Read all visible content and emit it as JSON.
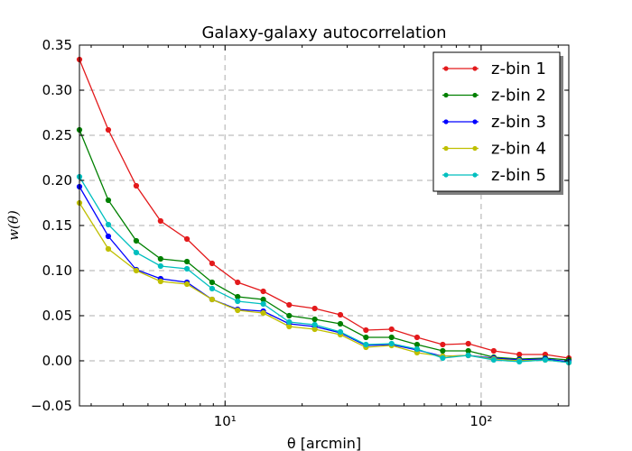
{
  "chart_data": {
    "type": "line",
    "title": "Galaxy-galaxy autocorrelation",
    "xlabel": "θ [arcmin]",
    "ylabel": "w(θ)",
    "xscale": "log",
    "xlim": [
      2.7,
      220
    ],
    "ylim": [
      -0.05,
      0.35
    ],
    "x_ticks": [
      {
        "value": 10,
        "label": "10¹"
      },
      {
        "value": 100,
        "label": "10²"
      }
    ],
    "y_ticks": [
      {
        "value": -0.05,
        "label": "−0.05"
      },
      {
        "value": 0.0,
        "label": "0.00"
      },
      {
        "value": 0.05,
        "label": "0.05"
      },
      {
        "value": 0.1,
        "label": "0.10"
      },
      {
        "value": 0.15,
        "label": "0.15"
      },
      {
        "value": 0.2,
        "label": "0.20"
      },
      {
        "value": 0.25,
        "label": "0.25"
      },
      {
        "value": 0.3,
        "label": "0.30"
      },
      {
        "value": 0.35,
        "label": "0.35"
      }
    ],
    "grid": true,
    "legend_position": "top-right",
    "x": [
      2.7,
      3.5,
      4.5,
      5.6,
      7.1,
      8.9,
      11.2,
      14.1,
      17.8,
      22.4,
      28.2,
      35.5,
      44.7,
      56.2,
      70.8,
      89.1,
      112,
      141,
      178,
      220
    ],
    "series": [
      {
        "name": "z-bin 1",
        "color": "#e31a1c",
        "values": [
          0.334,
          0.256,
          0.194,
          0.155,
          0.135,
          0.108,
          0.087,
          0.077,
          0.062,
          0.058,
          0.051,
          0.034,
          0.035,
          0.026,
          0.018,
          0.019,
          0.011,
          0.007,
          0.007,
          0.003
        ]
      },
      {
        "name": "z-bin 2",
        "color": "#008000",
        "values": [
          0.256,
          0.178,
          0.133,
          0.113,
          0.11,
          0.087,
          0.071,
          0.068,
          0.05,
          0.046,
          0.041,
          0.026,
          0.026,
          0.018,
          0.011,
          0.011,
          0.004,
          0.002,
          0.003,
          0.001
        ]
      },
      {
        "name": "z-bin 3",
        "color": "#0000ff",
        "values": [
          0.193,
          0.138,
          0.101,
          0.091,
          0.087,
          0.068,
          0.057,
          0.055,
          0.041,
          0.038,
          0.031,
          0.017,
          0.018,
          0.012,
          0.005,
          0.006,
          0.003,
          0.001,
          0.002,
          -0.001
        ]
      },
      {
        "name": "z-bin 4",
        "color": "#bfbf00",
        "values": [
          0.175,
          0.124,
          0.1,
          0.088,
          0.085,
          0.068,
          0.056,
          0.053,
          0.038,
          0.035,
          0.029,
          0.015,
          0.017,
          0.009,
          0.005,
          0.006,
          0.002,
          0.0,
          0.001,
          -0.002
        ]
      },
      {
        "name": "z-bin 5",
        "color": "#00bfbf",
        "values": [
          0.204,
          0.151,
          0.12,
          0.105,
          0.102,
          0.08,
          0.066,
          0.063,
          0.043,
          0.04,
          0.032,
          0.018,
          0.019,
          0.013,
          0.003,
          0.006,
          0.001,
          -0.001,
          0.001,
          -0.002
        ]
      }
    ]
  }
}
